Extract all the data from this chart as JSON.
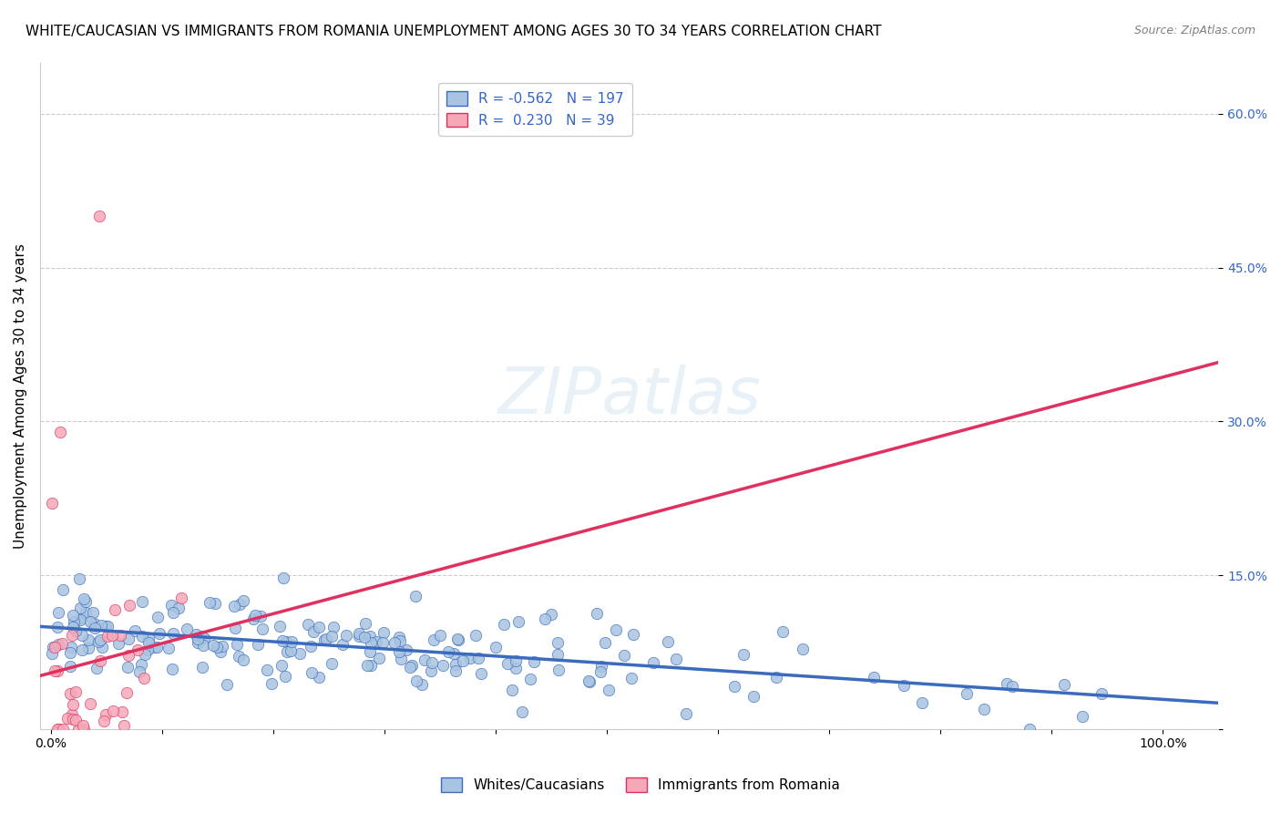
{
  "title": "WHITE/CAUCASIAN VS IMMIGRANTS FROM ROMANIA UNEMPLOYMENT AMONG AGES 30 TO 34 YEARS CORRELATION CHART",
  "source": "Source: ZipAtlas.com",
  "ylabel": "Unemployment Among Ages 30 to 34 years",
  "xlabel_ticks": [
    "0.0%",
    "100.0%"
  ],
  "ylim": [
    0,
    0.65
  ],
  "xlim": [
    -0.01,
    1.05
  ],
  "yticks": [
    0.0,
    0.15,
    0.3,
    0.45,
    0.6
  ],
  "ytick_labels": [
    "",
    "15.0%",
    "30.0%",
    "45.0%",
    "60.0%"
  ],
  "xticks": [
    0.0,
    0.1,
    0.2,
    0.3,
    0.4,
    0.5,
    0.6,
    0.7,
    0.8,
    0.9,
    1.0
  ],
  "xtick_labels": [
    "0.0%",
    "",
    "",
    "",
    "",
    "",
    "",
    "",
    "",
    "",
    "100.0%"
  ],
  "blue_R": -0.562,
  "blue_N": 197,
  "pink_R": 0.23,
  "pink_N": 39,
  "blue_color": "#a8c4e0",
  "blue_line_color": "#3a6bbf",
  "pink_color": "#f4a8b8",
  "pink_line_color": "#e03060",
  "watermark": "ZIPatlas",
  "legend_label_blue": "Whites/Caucasians",
  "legend_label_pink": "Immigrants from Romania",
  "title_fontsize": 11,
  "axis_label_fontsize": 11,
  "tick_fontsize": 10,
  "legend_fontsize": 11
}
